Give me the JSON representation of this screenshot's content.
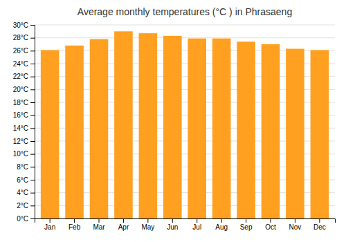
{
  "chart_data": {
    "type": "bar",
    "title": "Average monthly temperatures (°C ) in Phrasaeng",
    "categories": [
      "Jan",
      "Feb",
      "Mar",
      "Apr",
      "May",
      "Jun",
      "Jul",
      "Aug",
      "Sep",
      "Oct",
      "Nov",
      "Dec"
    ],
    "values": [
      26.1,
      26.8,
      27.8,
      29.0,
      28.7,
      28.3,
      27.9,
      27.9,
      27.4,
      27.0,
      26.3,
      26.1
    ],
    "color": "#FFA020",
    "ylim": [
      0,
      30
    ],
    "yticks": [
      {
        "value": 0,
        "label": "0°C"
      },
      {
        "value": 2,
        "label": "2°C"
      },
      {
        "value": 4,
        "label": "4°C"
      },
      {
        "value": 6,
        "label": "6°C"
      },
      {
        "value": 8,
        "label": "8°C"
      },
      {
        "value": 10,
        "label": "10°C"
      },
      {
        "value": 12,
        "label": "12°C"
      },
      {
        "value": 14,
        "label": "14°C"
      },
      {
        "value": 16,
        "label": "16°C"
      },
      {
        "value": 18,
        "label": "18°C"
      },
      {
        "value": 20,
        "label": "20°C"
      },
      {
        "value": 22,
        "label": "22°C"
      },
      {
        "value": 24,
        "label": "24°C"
      },
      {
        "value": 26,
        "label": "26°C"
      },
      {
        "value": 28,
        "label": "28°C"
      },
      {
        "value": 30,
        "label": "30°C"
      }
    ],
    "grid": true
  }
}
